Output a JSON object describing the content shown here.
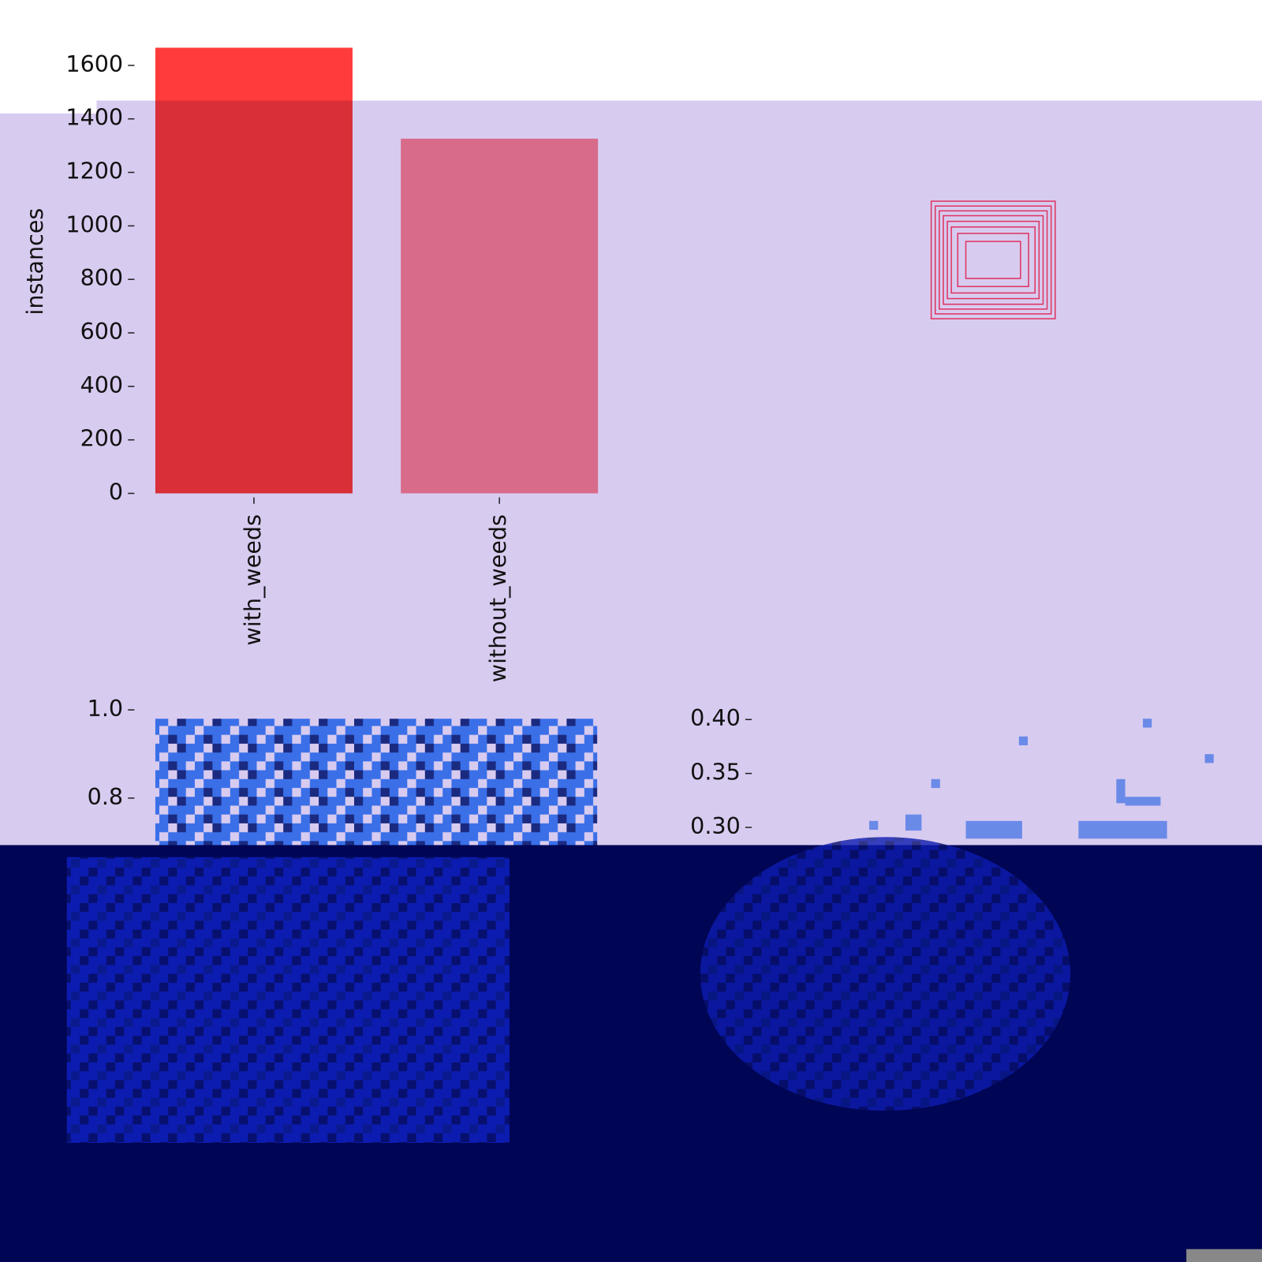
{
  "chart_data": [
    {
      "type": "bar",
      "ylabel": "instances",
      "categories": [
        "with_weeds",
        "without_weeds"
      ],
      "values": [
        1666,
        1326
      ],
      "colors": [
        "#ff3b3b",
        "#ff8693"
      ],
      "ylim": [
        0,
        1700
      ],
      "yticks": [
        0,
        200,
        400,
        600,
        800,
        1000,
        1200,
        1400,
        1600
      ]
    },
    {
      "type": "heatmap",
      "ylim": [
        0,
        1
      ],
      "yticks": [
        {
          "value": 0.8,
          "label": "0.8"
        },
        {
          "value": 1.0,
          "label": "1.0"
        }
      ]
    },
    {
      "type": "heatmap",
      "ylim": [
        0,
        0.4
      ],
      "yticks": [
        {
          "value": 0.3,
          "label": "0.30"
        },
        {
          "value": 0.35,
          "label": "0.35"
        },
        {
          "value": 0.4,
          "label": "0.40"
        }
      ]
    }
  ]
}
